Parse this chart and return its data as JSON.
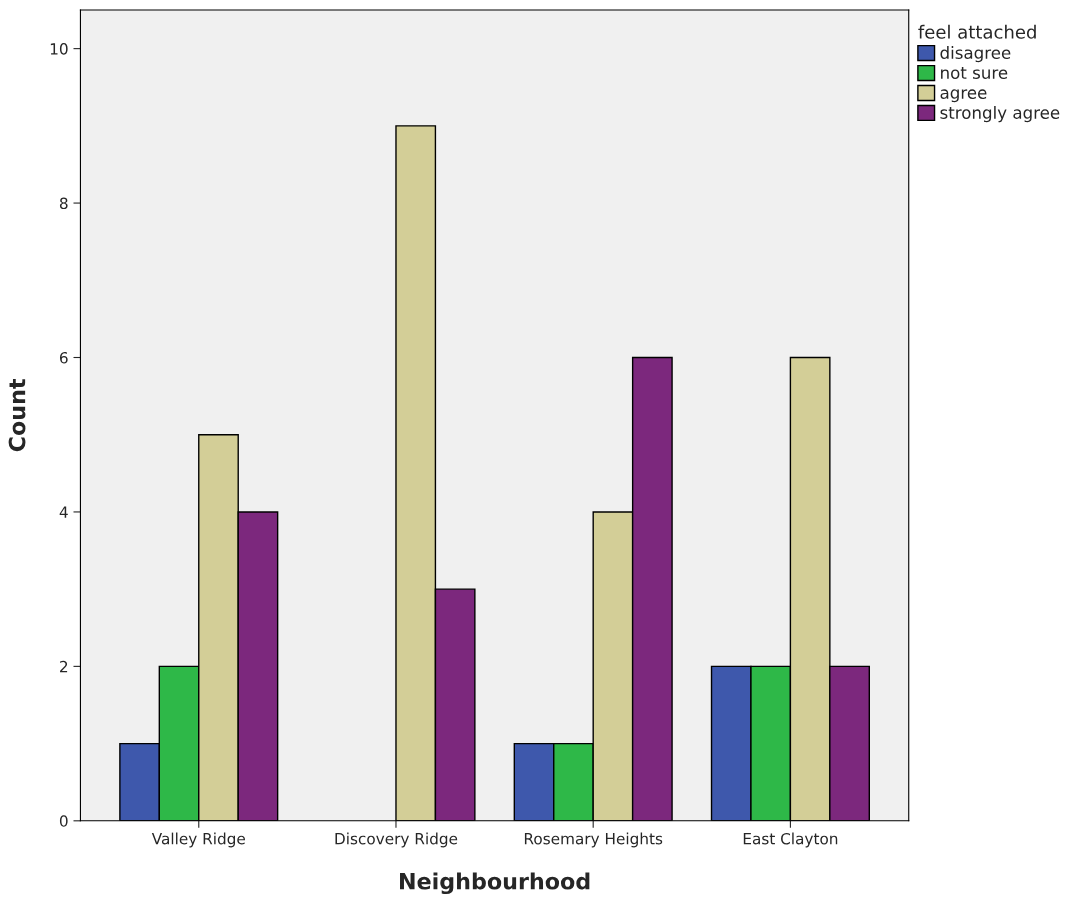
{
  "chart_data": {
    "type": "bar",
    "xlabel": "Neighbourhood",
    "ylabel": "Count",
    "legend_title": "feel attached",
    "categories": [
      "Valley Ridge",
      "Discovery Ridge",
      "Rosemary Heights",
      "East Clayton"
    ],
    "series": [
      {
        "name": "disagree",
        "color": "#3e58ac",
        "values": [
          1,
          null,
          1,
          2
        ]
      },
      {
        "name": "not sure",
        "color": "#2eb848",
        "values": [
          2,
          null,
          1,
          2
        ]
      },
      {
        "name": "agree",
        "color": "#d3ce97",
        "values": [
          5,
          9,
          4,
          6
        ]
      },
      {
        "name": "strongly agree",
        "color": "#7c287d",
        "values": [
          4,
          3,
          6,
          2
        ]
      }
    ],
    "ylim": [
      0,
      10.5
    ],
    "yticks": [
      0,
      2,
      4,
      6,
      8,
      10
    ],
    "grid": false,
    "legend": "top right"
  }
}
